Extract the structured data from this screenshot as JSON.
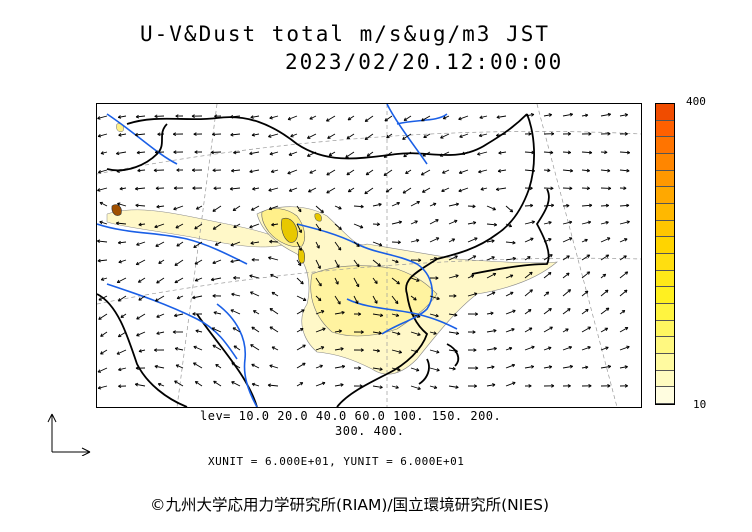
{
  "title": {
    "line1": "U-V&Dust total m/s&ug/m3 JST",
    "line2": "2023/02/20.12:00:00"
  },
  "colorbar": {
    "max_label": "400",
    "min_label": "10",
    "colors": [
      "#fffde0",
      "#fffbc0",
      "#fffaa0",
      "#fff880",
      "#fff660",
      "#fff440",
      "#fff020",
      "#ffe818",
      "#ffde10",
      "#ffd400",
      "#ffc600",
      "#ffb800",
      "#ffa800",
      "#ff9800",
      "#ff8600",
      "#ff7400",
      "#ff6000",
      "#f04c00"
    ]
  },
  "legend": {
    "levels_line1": "lev= 10.0 20.0 40.0 60.0 100. 150. 200.",
    "levels_line2": "300. 400.",
    "units": "XUNIT = 6.000E+01, YUNIT = 6.000E+01"
  },
  "copyright": "©九州大学応用力学研究所(RIAM)/国立環境研究所(NIES)",
  "colors": {
    "rivers": "#1a5fe6",
    "coast": "#000000",
    "dust_light": "#fff8c8",
    "dust_mid": "#fff08a",
    "dust_high": "#e8c800",
    "dust_peak": "#a05000"
  }
}
